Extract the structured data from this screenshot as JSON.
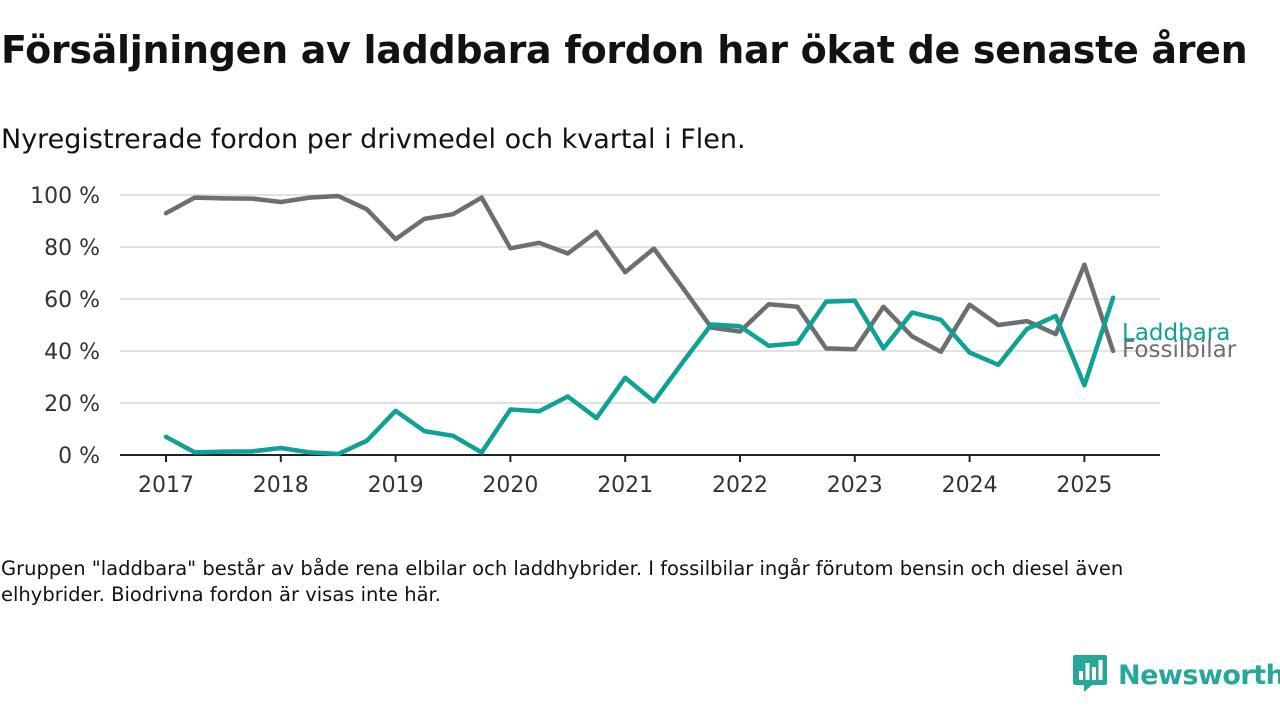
{
  "title": "Försäljningen av laddbara fordon har ökat de senaste åren",
  "subtitle": "Nyregistrerade fordon per drivmedel och kvartal i Flen.",
  "note": "Gruppen \"laddbara\" består av både rena elbilar och laddhybrider. I fossilbilar ingår förutom bensin och diesel även elhybrider. Biodrivna fordon är visas inte här.",
  "brand": {
    "name": "Newsworthy",
    "color": "#27a69a",
    "icon": "newsworthy-logo-icon"
  },
  "chart_data": {
    "type": "line",
    "x": [
      "2017 Q1",
      "2017 Q2",
      "2017 Q3",
      "2017 Q4",
      "2018 Q1",
      "2018 Q2",
      "2018 Q3",
      "2018 Q4",
      "2019 Q1",
      "2019 Q2",
      "2019 Q3",
      "2019 Q4",
      "2020 Q1",
      "2020 Q2",
      "2020 Q3",
      "2020 Q4",
      "2021 Q1",
      "2021 Q2",
      "2021 Q3",
      "2021 Q4",
      "2022 Q1",
      "2022 Q2",
      "2022 Q3",
      "2022 Q4",
      "2023 Q1",
      "2023 Q2",
      "2023 Q3",
      "2023 Q4",
      "2024 Q1",
      "2024 Q2",
      "2024 Q3",
      "2024 Q4",
      "2025 Q1",
      "2025 Q2"
    ],
    "x_ticks": [
      "2017",
      "2018",
      "2019",
      "2020",
      "2021",
      "2022",
      "2023",
      "2024",
      "2025"
    ],
    "y_ticks": [
      "0 %",
      "20 %",
      "40 %",
      "60 %",
      "80 %",
      "100 %"
    ],
    "ylim": [
      0,
      100
    ],
    "grid": true,
    "series": [
      {
        "name": "Fossilbilar",
        "color": "#6e6d72",
        "values": [
          93,
          99,
          98.7,
          98.6,
          97.3,
          99,
          99.6,
          94.5,
          83,
          90.8,
          92.6,
          99,
          79.5,
          81.6,
          77.5,
          85.8,
          70.3,
          79.4,
          64.4,
          49,
          47.5,
          58,
          57,
          41,
          40.7,
          57,
          45.6,
          39.7,
          57.8,
          50,
          51.5,
          46.5,
          73.2,
          40
        ]
      },
      {
        "name": "Laddbara",
        "color": "#0ea194",
        "values": [
          7,
          1,
          1.3,
          1.4,
          2.7,
          1,
          0.4,
          5.5,
          17,
          9.2,
          7.4,
          1,
          17.5,
          16.8,
          22.5,
          14.2,
          29.7,
          20.6,
          35.6,
          50.2,
          49.5,
          42,
          43,
          59,
          59.3,
          41,
          54.8,
          52,
          39.4,
          34.7,
          48.5,
          53.5,
          26.8,
          60.5
        ]
      }
    ]
  }
}
